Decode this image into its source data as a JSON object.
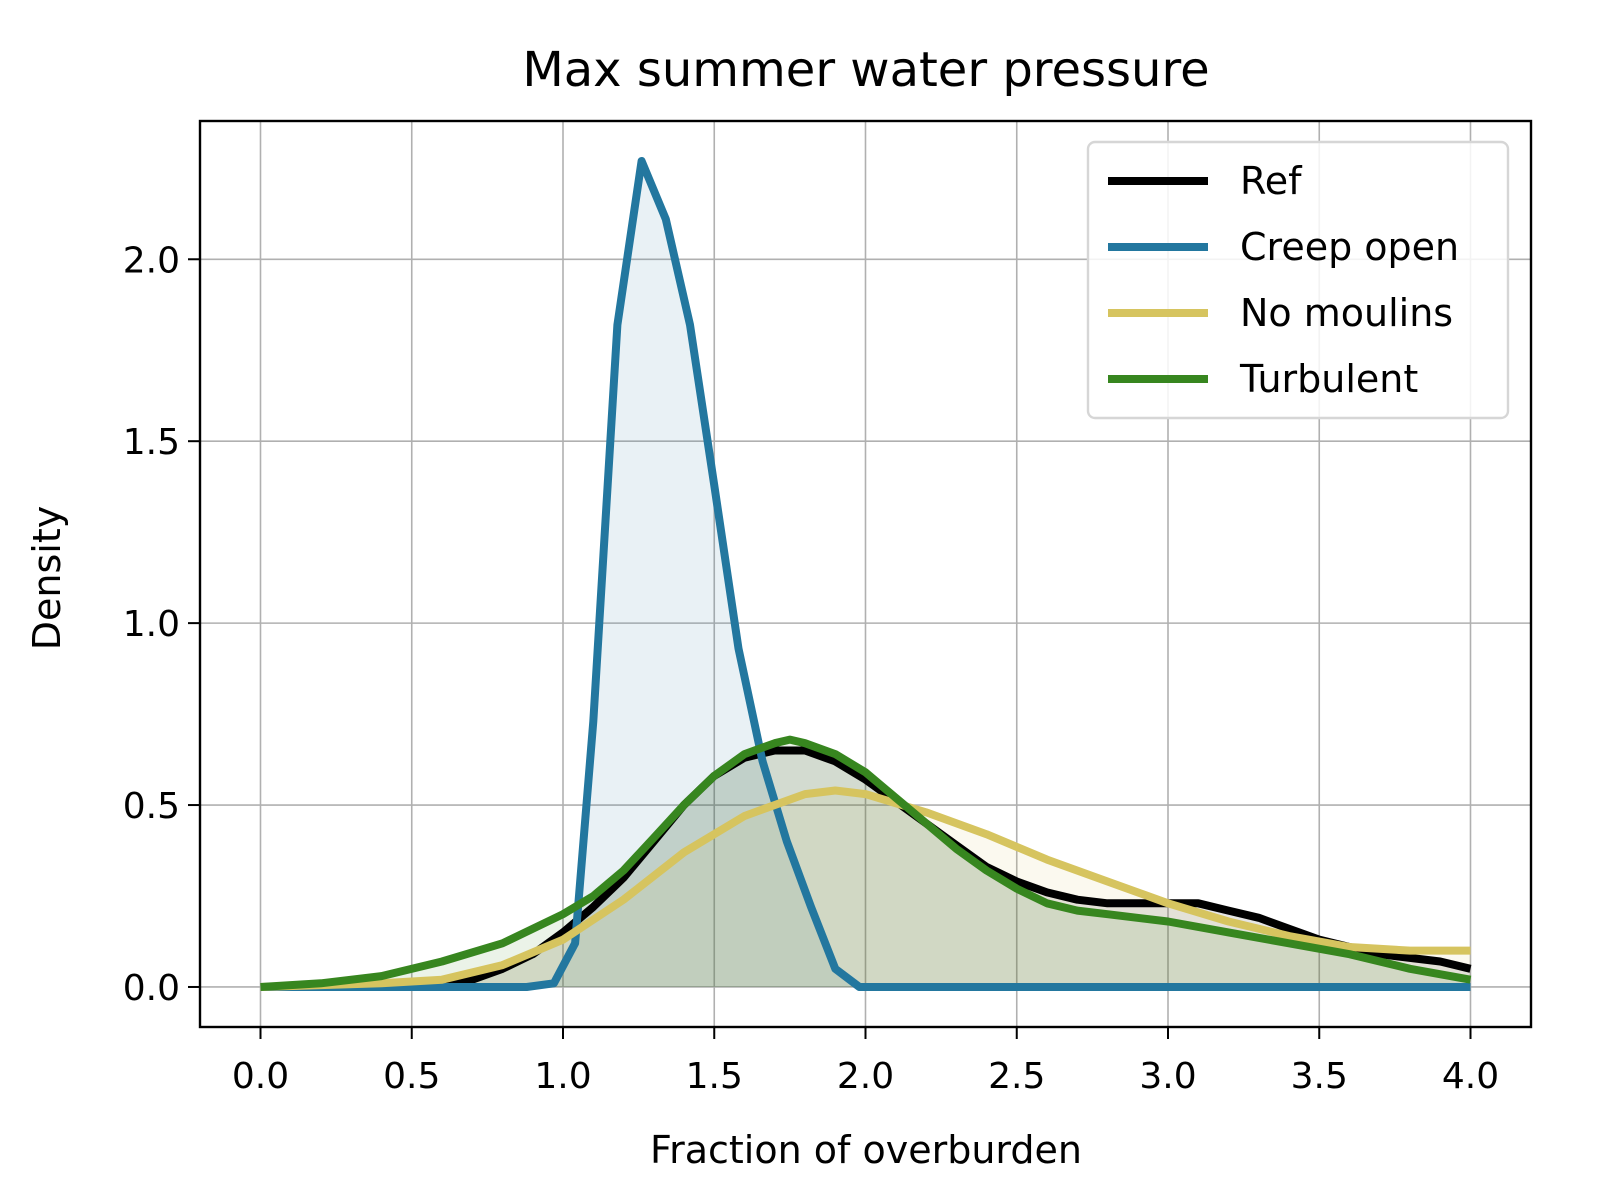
{
  "chart_data": {
    "type": "line",
    "title": "Max summer water pressure",
    "xlabel": "Fraction of overburden",
    "ylabel": "Density",
    "xlim": [
      -0.2,
      4.2
    ],
    "ylim": [
      -0.11,
      2.38
    ],
    "xticks": [
      0.0,
      0.5,
      1.0,
      1.5,
      2.0,
      2.5,
      3.0,
      3.5,
      4.0
    ],
    "xtick_labels": [
      "0.0",
      "0.5",
      "1.0",
      "1.5",
      "2.0",
      "2.5",
      "3.0",
      "3.5",
      "4.0"
    ],
    "yticks": [
      0.0,
      0.5,
      1.0,
      1.5,
      2.0
    ],
    "ytick_labels": [
      "0.0",
      "0.5",
      "1.0",
      "1.5",
      "2.0"
    ],
    "grid": true,
    "legend_position": "top-right",
    "series": [
      {
        "name": "Ref",
        "color": "#000000",
        "fill_opacity": 0.1,
        "x": [
          0.0,
          0.3,
          0.6,
          0.7,
          0.8,
          0.9,
          1.0,
          1.1,
          1.2,
          1.3,
          1.4,
          1.5,
          1.6,
          1.7,
          1.8,
          1.9,
          2.0,
          2.1,
          2.2,
          2.3,
          2.4,
          2.5,
          2.6,
          2.7,
          2.8,
          2.9,
          3.0,
          3.1,
          3.2,
          3.3,
          3.4,
          3.5,
          3.6,
          3.7,
          3.8,
          3.9,
          4.0
        ],
        "y": [
          0.0,
          0.0,
          0.01,
          0.02,
          0.05,
          0.09,
          0.15,
          0.22,
          0.3,
          0.4,
          0.5,
          0.58,
          0.63,
          0.65,
          0.65,
          0.62,
          0.57,
          0.51,
          0.45,
          0.39,
          0.33,
          0.29,
          0.26,
          0.24,
          0.23,
          0.23,
          0.23,
          0.23,
          0.21,
          0.19,
          0.16,
          0.13,
          0.11,
          0.09,
          0.08,
          0.07,
          0.05
        ]
      },
      {
        "name": "Creep open",
        "color": "#23779f",
        "fill_opacity": 0.1,
        "x": [
          0.0,
          0.88,
          0.97,
          1.04,
          1.1,
          1.18,
          1.26,
          1.34,
          1.42,
          1.5,
          1.58,
          1.66,
          1.74,
          1.82,
          1.9,
          1.98,
          2.06,
          4.0
        ],
        "y": [
          0.0,
          0.0,
          0.01,
          0.12,
          0.73,
          1.82,
          2.27,
          2.11,
          1.82,
          1.38,
          0.93,
          0.62,
          0.4,
          0.22,
          0.05,
          0.0,
          0.0,
          0.0
        ]
      },
      {
        "name": "No moulins",
        "color": "#d6c45f",
        "fill_opacity": 0.1,
        "x": [
          0.0,
          0.4,
          0.6,
          0.8,
          1.0,
          1.2,
          1.4,
          1.6,
          1.8,
          1.9,
          2.0,
          2.2,
          2.4,
          2.6,
          2.8,
          3.0,
          3.2,
          3.4,
          3.6,
          3.8,
          4.0
        ],
        "y": [
          0.0,
          0.01,
          0.02,
          0.06,
          0.13,
          0.24,
          0.37,
          0.47,
          0.53,
          0.54,
          0.53,
          0.48,
          0.42,
          0.35,
          0.29,
          0.23,
          0.18,
          0.14,
          0.11,
          0.1,
          0.1
        ]
      },
      {
        "name": "Turbulent",
        "color": "#37861f",
        "fill_opacity": 0.1,
        "x": [
          0.0,
          0.2,
          0.4,
          0.6,
          0.8,
          1.0,
          1.1,
          1.2,
          1.3,
          1.4,
          1.5,
          1.6,
          1.7,
          1.75,
          1.8,
          1.9,
          2.0,
          2.1,
          2.2,
          2.3,
          2.4,
          2.5,
          2.6,
          2.7,
          2.8,
          3.0,
          3.2,
          3.4,
          3.6,
          3.8,
          4.0
        ],
        "y": [
          0.0,
          0.01,
          0.03,
          0.07,
          0.12,
          0.2,
          0.25,
          0.32,
          0.41,
          0.5,
          0.58,
          0.64,
          0.67,
          0.68,
          0.67,
          0.64,
          0.59,
          0.52,
          0.45,
          0.38,
          0.32,
          0.27,
          0.23,
          0.21,
          0.2,
          0.18,
          0.15,
          0.12,
          0.09,
          0.05,
          0.02
        ]
      }
    ]
  }
}
